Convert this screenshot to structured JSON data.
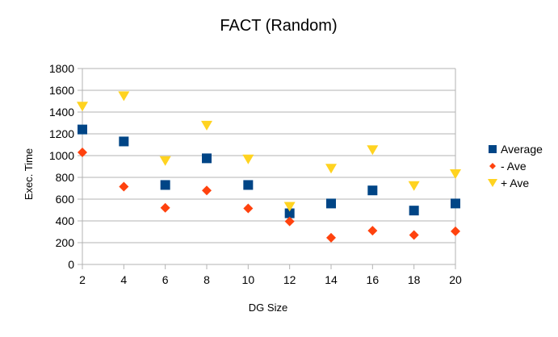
{
  "chart_data": {
    "type": "scatter",
    "title": "FACT (Random)",
    "xlabel": "DG Size",
    "ylabel": "Exec. Time",
    "x": [
      2,
      4,
      6,
      8,
      10,
      12,
      14,
      16,
      18,
      20
    ],
    "xlim": [
      2,
      20
    ],
    "ylim": [
      0,
      1800
    ],
    "x_ticks": [
      "2",
      "4",
      "6",
      "8",
      "10",
      "12",
      "14",
      "16",
      "18",
      "20"
    ],
    "y_ticks": [
      "0",
      "200",
      "400",
      "600",
      "800",
      "1000",
      "1200",
      "1400",
      "1600",
      "1800"
    ],
    "grid": "horizontal",
    "legend_position": "right",
    "series": [
      {
        "name": "Average",
        "marker": "square",
        "color": "#004586",
        "values": [
          1240,
          1130,
          730,
          975,
          730,
          470,
          560,
          680,
          495,
          560
        ]
      },
      {
        "name": "- Ave",
        "marker": "diamond",
        "color": "#ff420e",
        "values": [
          1030,
          715,
          520,
          680,
          515,
          395,
          245,
          310,
          270,
          305
        ]
      },
      {
        "name": "+ Ave",
        "marker": "triangle-down",
        "color": "#ffd320",
        "values": [
          1450,
          1545,
          950,
          1275,
          965,
          530,
          880,
          1050,
          720,
          830
        ]
      }
    ]
  }
}
